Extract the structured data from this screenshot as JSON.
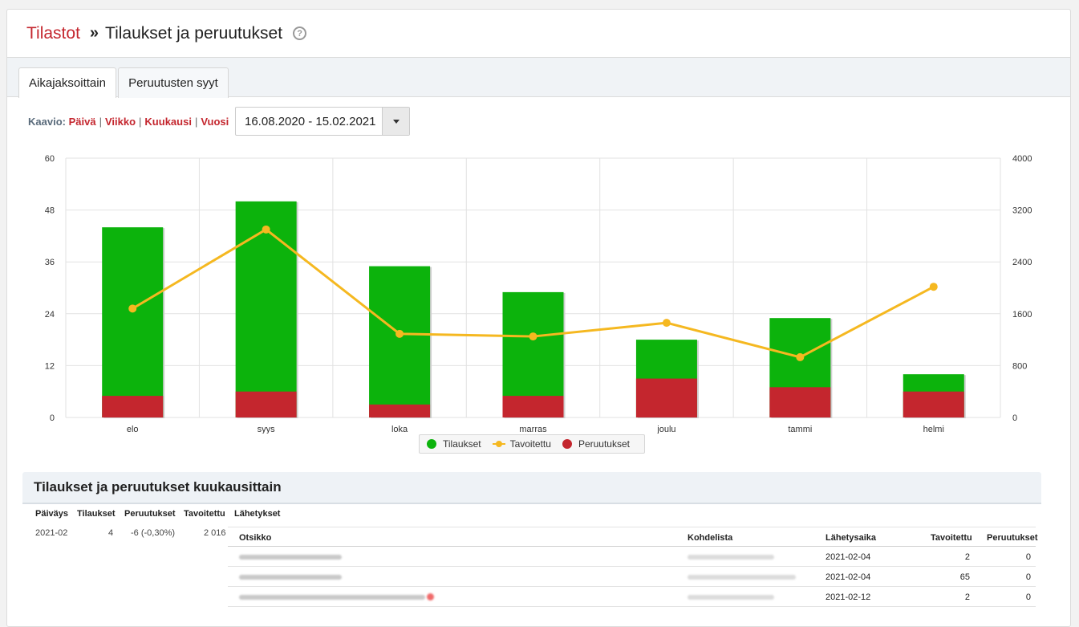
{
  "breadcrumb": {
    "root": "Tilastot",
    "separator": "»",
    "current": "Tilaukset ja peruutukset"
  },
  "tabs": [
    {
      "label": "Aikajaksoittain",
      "active": true
    },
    {
      "label": "Peruutusten syyt",
      "active": false
    }
  ],
  "controls": {
    "label": "Kaavio:",
    "options": [
      "Päivä",
      "Viikko",
      "Kuukausi",
      "Vuosi"
    ],
    "date_range": "16.08.2020 - 15.02.2021"
  },
  "colors": {
    "accent": "#c4262e",
    "orders": "#0cb30c",
    "target": "#f5b820",
    "cancellations": "#c4262e"
  },
  "chart_data": {
    "type": "bar",
    "stacked": true,
    "categories": [
      "elo",
      "syys",
      "loka",
      "marras",
      "joulu",
      "tammi",
      "helmi"
    ],
    "series": [
      {
        "name": "Tilaukset",
        "axis": "left",
        "values": [
          44,
          50,
          35,
          29,
          18,
          23,
          10
        ]
      },
      {
        "name": "Peruutukset",
        "axis": "left",
        "values": [
          5,
          6,
          3,
          5,
          9,
          7,
          6
        ]
      },
      {
        "name": "Tavoitettu",
        "axis": "right",
        "type": "line",
        "values": [
          1680,
          2900,
          1290,
          1250,
          1460,
          930,
          2016
        ]
      }
    ],
    "ylim_left": [
      0,
      60
    ],
    "yticks_left": [
      "0",
      "12",
      "24",
      "36",
      "48",
      "60"
    ],
    "ylim_right": [
      0,
      4000
    ],
    "yticks_right": [
      "0",
      "800",
      "1600",
      "2400",
      "3200",
      "4000"
    ],
    "grid": true,
    "legend_position": "bottom-center"
  },
  "legend": [
    "Tilaukset",
    "Tavoitettu",
    "Peruutukset"
  ],
  "table": {
    "title": "Tilaukset ja peruutukset kuukausittain",
    "headers": [
      "Päiväys",
      "Tilaukset",
      "Peruutukset",
      "Tavoitettu",
      "Lähetykset"
    ],
    "row": {
      "date": "2021-02",
      "orders": "4",
      "cancellations": "-6 (-0,30%)",
      "target": "2 016"
    },
    "sends_headers": [
      "Otsikko",
      "Kohdelista",
      "Lähetysaika",
      "Tavoitettu",
      "Peruutukset"
    ],
    "sends": [
      {
        "time": "2021-02-04",
        "reached": "2",
        "cancelled": "0"
      },
      {
        "time": "2021-02-04",
        "reached": "65",
        "cancelled": "0"
      },
      {
        "time": "2021-02-12",
        "reached": "2",
        "cancelled": "0"
      }
    ]
  }
}
